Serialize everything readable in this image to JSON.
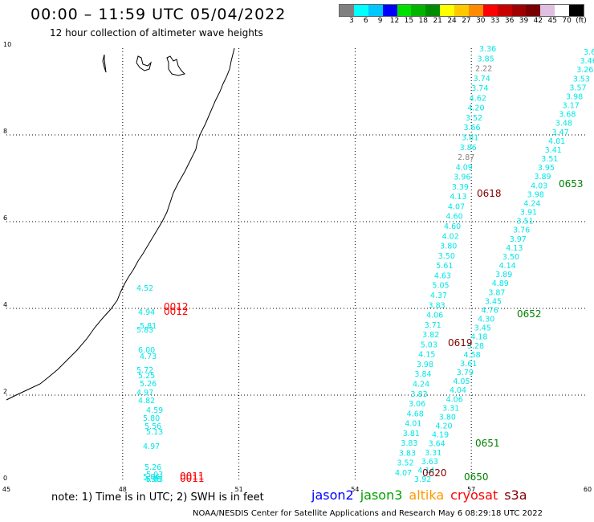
{
  "header": {
    "title": "00:00 – 11:59 UTC 05/04/2022",
    "subtitle": "12 hour collection of altimeter wave heights"
  },
  "colorbar": {
    "colors": [
      "#808080",
      "#00ffff",
      "#00c8ff",
      "#0000ff",
      "#00e000",
      "#00b400",
      "#008c00",
      "#ffff00",
      "#ffc800",
      "#ff8c00",
      "#ff0000",
      "#c80000",
      "#a00000",
      "#780000",
      "#e0c0e0",
      "#ffffff",
      "#000000"
    ],
    "labels": [
      "3",
      "6",
      "9",
      "12",
      "15",
      "18",
      "21",
      "24",
      "27",
      "30",
      "33",
      "36",
      "39",
      "42",
      "45",
      "70",
      "(ft)"
    ]
  },
  "axes": {
    "x_ticks": [
      "45",
      "48",
      "51",
      "54",
      "57",
      "60"
    ],
    "y_ticks": [
      "0",
      "2",
      "4",
      "6",
      "8",
      "10"
    ]
  },
  "tracks": {
    "track_a": [
      "4.52",
      "4.94",
      "5.81",
      "5.83",
      "6.00",
      "4.73",
      "5.72",
      "5.25",
      "5.26",
      "4.97",
      "4.82",
      "4.59",
      "5.80",
      "5.56",
      "5.13",
      "4.97",
      "5.26",
      "5.03",
      "5.06",
      "4.98",
      "5.03"
    ],
    "track_b": [
      "4.07",
      "3.52",
      "3.83",
      "3.83",
      "3.81",
      "4.01",
      "4.68",
      "3.06",
      "3.83",
      "4.24",
      "3.84",
      "3.98",
      "4.15",
      "5.03",
      "3.82",
      "3.71",
      "4.06",
      "3.83",
      "4.37",
      "5.05",
      "4.63",
      "5.61",
      "3.50",
      "3.80",
      "4.02",
      "4.60",
      "4.60",
      "4.07",
      "4.13",
      "3.39",
      "3.96",
      "4.09",
      "2.87",
      "3.86",
      "3.81",
      "3.66",
      "3.52",
      "4.20",
      "4.62",
      "3.74",
      "3.74",
      "2.22",
      "3.85",
      "3.36"
    ],
    "track_c": [
      "3.92",
      "4.14",
      "3.63",
      "3.31",
      "3.64",
      "4.19",
      "4.20",
      "3.80",
      "3.31",
      "4.06",
      "4.04",
      "4.05",
      "3.79",
      "3.61",
      "4.58",
      "5.28",
      "4.18",
      "3.45",
      "4.30",
      "4.76",
      "3.45",
      "3.87",
      "4.89",
      "3.89",
      "4.14",
      "3.50",
      "4.13",
      "3.97",
      "3.76",
      "3.51",
      "3.91",
      "4.24",
      "3.98",
      "4.03",
      "3.89",
      "3.95",
      "3.51",
      "3.41",
      "4.01",
      "3.47",
      "3.48",
      "3.68",
      "3.17",
      "3.98",
      "3.57",
      "3.53",
      "3.26",
      "3.46",
      "3.64"
    ]
  },
  "pass_labels": [
    {
      "text": "0012",
      "color": "#ff0000"
    },
    {
      "text": "0012",
      "color": "#ff0000"
    },
    {
      "text": "0011",
      "color": "#ff0000"
    },
    {
      "text": "0011",
      "color": "#ff0000"
    },
    {
      "text": "0618",
      "color": "#800000"
    },
    {
      "text": "0619",
      "color": "#800000"
    },
    {
      "text": "0620",
      "color": "#800000"
    },
    {
      "text": "0653",
      "color": "#008000"
    },
    {
      "text": "0652",
      "color": "#008000"
    },
    {
      "text": "0651",
      "color": "#008000"
    },
    {
      "text": "0650",
      "color": "#008000"
    }
  ],
  "footer": {
    "note": "note: 1) Time is in UTC; 2) SWH is in feet",
    "credit": "NOAA/NESDIS Center for Satellite Applications and Research    May  6 08:29:18 UTC 2022",
    "legend": [
      {
        "name": "jason2",
        "color": "#0000ff"
      },
      {
        "name": "jason3",
        "color": "#00a000"
      },
      {
        "name": "altika",
        "color": "#ff9900"
      },
      {
        "name": "cryosat",
        "color": "#ff0000"
      },
      {
        "name": "s3a",
        "color": "#800000"
      }
    ]
  }
}
